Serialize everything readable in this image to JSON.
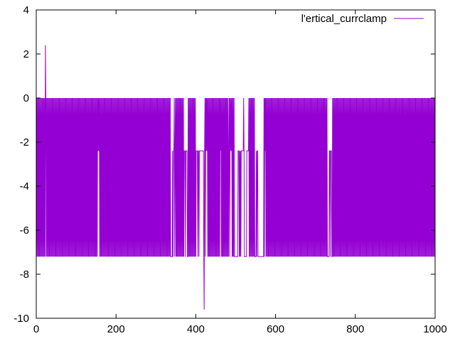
{
  "chart_data": {
    "type": "line",
    "xlim": [
      0,
      1000
    ],
    "ylim": [
      -10,
      4
    ],
    "x_ticks": [
      0,
      200,
      400,
      600,
      800,
      1000
    ],
    "y_ticks": [
      -10,
      -8,
      -6,
      -4,
      -2,
      0,
      2,
      4
    ],
    "grid": false,
    "legend_position": "top-right",
    "colors": {
      "series": "#9400d3",
      "axes": "#000000",
      "background": "#ffffff"
    },
    "series": [
      {
        "name": "l'ertical_currclamp",
        "signal": {
          "baseline_high": 0,
          "baseline_low": -7.2,
          "mid_level": -2.4,
          "n_points": 1000,
          "spikes": [
            {
              "x": 23,
              "y": 2.4
            },
            {
              "x": 421,
              "y": -9.6
            }
          ],
          "mid_level_runs": [
            [
              153,
              157
            ],
            [
              342,
              349
            ],
            [
              371,
              378
            ],
            [
              400,
              430
            ],
            [
              455,
              462
            ],
            [
              483,
              490
            ],
            [
              506,
              521
            ],
            [
              528,
              533
            ],
            [
              552,
              557
            ],
            [
              572,
              576
            ],
            [
              735,
              740
            ]
          ],
          "high_level_gaps": [
            [
              337,
              345
            ],
            [
              370,
              380
            ],
            [
              402,
              420
            ],
            [
              498,
              518
            ],
            [
              522,
              532
            ],
            [
              548,
              570
            ],
            [
              730,
              742
            ]
          ]
        }
      }
    ]
  }
}
